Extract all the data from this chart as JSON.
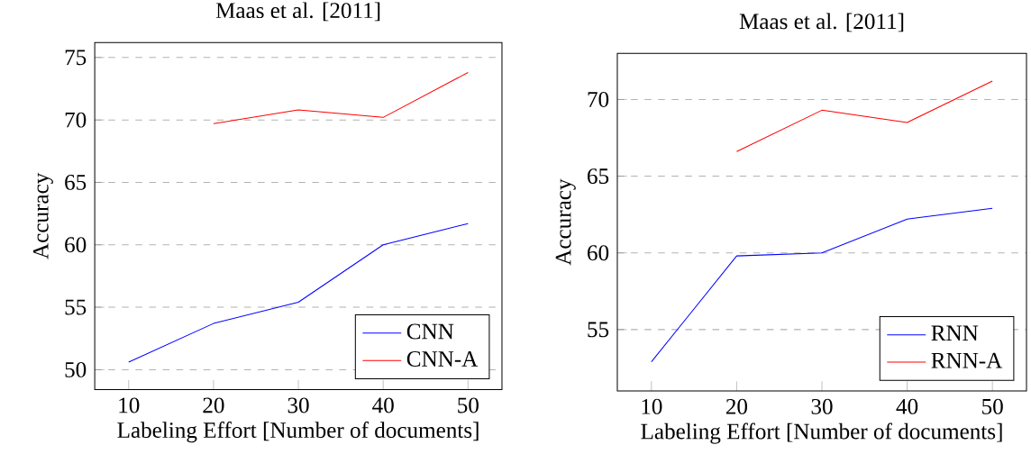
{
  "chart_data": [
    {
      "type": "line",
      "title": "Maas et al. [2011]",
      "xlabel": "Labeling Effort [Number of documents]",
      "ylabel": "Accuracy",
      "x": [
        10,
        20,
        30,
        40,
        50
      ],
      "series": [
        {
          "name": "CNN",
          "color": "#0000ff",
          "values": [
            50.6,
            53.7,
            55.4,
            60.0,
            61.7
          ]
        },
        {
          "name": "CNN-A",
          "color": "#ff0000",
          "values": [
            null,
            69.7,
            70.8,
            70.2,
            73.8
          ]
        }
      ],
      "xlim": [
        6,
        54
      ],
      "ylim": [
        48.4,
        76.2
      ],
      "xticks": [
        10,
        20,
        30,
        40,
        50
      ],
      "yticks": [
        50,
        55,
        60,
        65,
        70,
        75
      ],
      "grid": "y",
      "legend": "bottom right"
    },
    {
      "type": "line",
      "title": "Maas et al. [2011]",
      "xlabel": "Labeling Effort [Number of documents]",
      "ylabel": "Accuracy",
      "x": [
        10,
        20,
        30,
        40,
        50
      ],
      "series": [
        {
          "name": "RNN",
          "color": "#0000ff",
          "values": [
            52.9,
            59.8,
            60.0,
            62.2,
            62.9
          ]
        },
        {
          "name": "RNN-A",
          "color": "#ff0000",
          "values": [
            null,
            66.6,
            69.3,
            68.5,
            71.2
          ]
        }
      ],
      "xlim": [
        6,
        54
      ],
      "ylim": [
        51.0,
        73.0
      ],
      "xticks": [
        10,
        20,
        30,
        40,
        50
      ],
      "yticks": [
        55,
        60,
        65,
        70
      ],
      "grid": "y",
      "legend": "bottom right"
    }
  ]
}
